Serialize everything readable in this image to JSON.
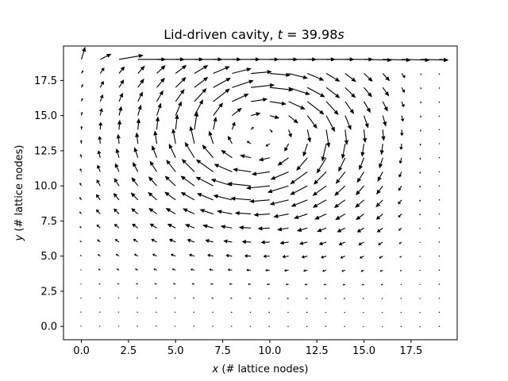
{
  "chart_data": {
    "type": "quiver",
    "title_prefix": "Lid-driven cavity, ",
    "title_var": "t",
    "title_eq": " = 39.98",
    "title_unit": "s",
    "xlabel_var": "x",
    "xlabel_rest": " (# lattice nodes)",
    "ylabel_var": "y",
    "ylabel_rest": " (# lattice nodes)",
    "xlim": [
      -0.95,
      19.95
    ],
    "ylim": [
      -0.95,
      19.95
    ],
    "xticks": [
      0.0,
      2.5,
      5.0,
      7.5,
      10.0,
      12.5,
      15.0,
      17.5
    ],
    "xtick_labels": [
      "0.0",
      "2.5",
      "5.0",
      "7.5",
      "10.0",
      "12.5",
      "15.0",
      "17.5"
    ],
    "yticks": [
      0.0,
      2.5,
      5.0,
      7.5,
      10.0,
      12.5,
      15.0,
      17.5
    ],
    "ytick_labels": [
      "0.0",
      "2.5",
      "5.0",
      "7.5",
      "10.0",
      "12.5",
      "15.0",
      "17.5"
    ],
    "grid": false,
    "arrow_color": "#000000",
    "grid_nodes": {
      "x_start": 0,
      "x_step": 1,
      "x_count": 20,
      "y_start": 0,
      "y_step": 1,
      "y_count": 20
    },
    "vortex_center": [
      9.5,
      13.6
    ],
    "lid_row_y": 19,
    "lid_velocity_dx": 1.5
  }
}
